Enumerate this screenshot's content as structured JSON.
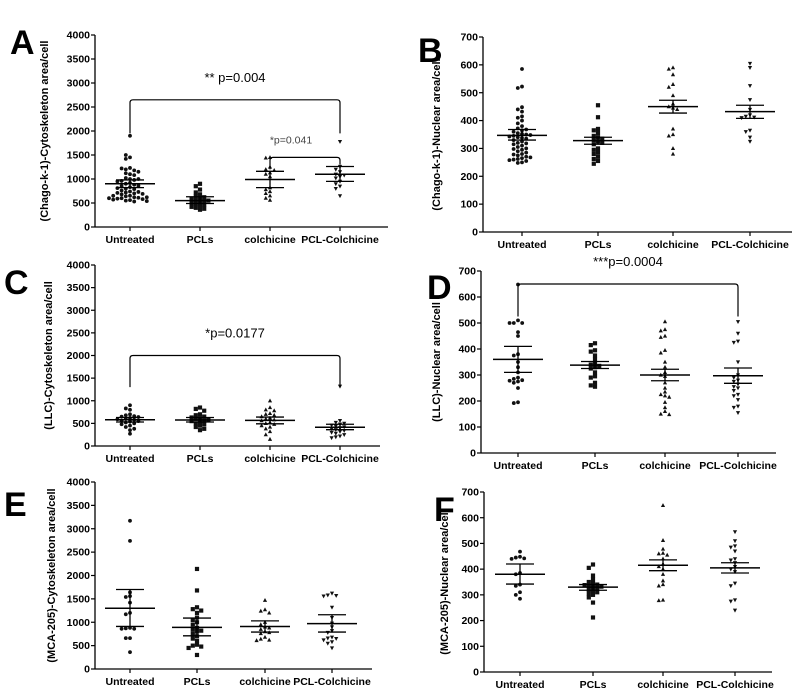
{
  "figure": {
    "categories": [
      "Untreated",
      "PCLs",
      "colchicine",
      "PCL-Colchicine"
    ],
    "markers": [
      "circle",
      "square",
      "triangle-up",
      "triangle-down"
    ]
  },
  "chart_data": [
    {
      "type": "scatter",
      "panel": "A",
      "title": "",
      "xlabel": "",
      "ylabel": "(Chago-k-1)-Cytoskeleton area/cell",
      "categories": [
        "Untreated",
        "PCLs",
        "colchicine",
        "PCL-Colchicine"
      ],
      "ylim": [
        0,
        4000
      ],
      "yticks": [
        0,
        500,
        1000,
        1500,
        2000,
        2500,
        3000,
        3500,
        4000
      ],
      "series": [
        {
          "name": "Untreated",
          "mean": 900,
          "sem_low": 820,
          "sem_high": 980,
          "values": [
            1900,
            1450,
            1420,
            1500,
            1230,
            1200,
            1180,
            1220,
            1100,
            1120,
            1080,
            1150,
            1000,
            1020,
            980,
            960,
            1000,
            950,
            920,
            900,
            880,
            850,
            860,
            830,
            800,
            790,
            810,
            760,
            740,
            720,
            700,
            730,
            710,
            690,
            680,
            650,
            640,
            620,
            600,
            610,
            590,
            580,
            560,
            570,
            550,
            530,
            540,
            600,
            620,
            650
          ]
        },
        {
          "name": "PCLs",
          "mean": 550,
          "sem_low": 490,
          "sem_high": 630,
          "values": [
            900,
            850,
            780,
            720,
            680,
            640,
            620,
            600,
            580,
            560,
            550,
            540,
            520,
            500,
            480,
            460,
            440,
            420,
            400,
            380,
            360
          ]
        },
        {
          "name": "colchicine",
          "mean": 990,
          "sem_low": 820,
          "sem_high": 1160,
          "values": [
            1450,
            1440,
            1250,
            1200,
            1180,
            1130,
            1100,
            1050,
            820,
            780,
            740,
            700,
            650,
            600,
            560
          ]
        },
        {
          "name": "PCL-Colchicine",
          "mean": 1100,
          "sem_low": 950,
          "sem_high": 1260,
          "values": [
            1780,
            1260,
            1200,
            1150,
            1100,
            1080,
            1050,
            1020,
            950,
            900,
            850,
            800,
            650
          ]
        }
      ],
      "annotations": [
        {
          "text": "** p=0.004",
          "from": "Untreated",
          "to": "PCL-Colchicine",
          "bracket_y": 2650,
          "left_end": 1950,
          "right_end": 1950,
          "style": "large"
        },
        {
          "text": "*p=0.041",
          "from": "colchicine",
          "to": "PCL-Colchicine",
          "bracket_y": 1450,
          "left_end": 1200,
          "right_end": 1300,
          "style": "small"
        }
      ]
    },
    {
      "type": "scatter",
      "panel": "B",
      "title": "",
      "xlabel": "",
      "ylabel": "(Chago-k-1)-Nuclear area/cell",
      "categories": [
        "Untreated",
        "PCLs",
        "colchicine",
        "PCL-Colchicine"
      ],
      "ylim": [
        0,
        700
      ],
      "yticks": [
        0,
        100,
        200,
        300,
        400,
        500,
        600,
        700
      ],
      "series": [
        {
          "name": "Untreated",
          "mean": 347,
          "sem_low": 330,
          "sem_high": 368,
          "values": [
            585,
            522,
            517,
            448,
            440,
            432,
            415,
            410,
            400,
            390,
            380,
            372,
            368,
            365,
            360,
            355,
            352,
            350,
            348,
            345,
            343,
            340,
            338,
            335,
            330,
            325,
            320,
            318,
            315,
            310,
            305,
            300,
            298,
            295,
            290,
            285,
            280,
            278,
            275,
            270,
            268,
            265,
            262,
            260,
            258,
            255,
            250,
            248
          ]
        },
        {
          "name": "PCLs",
          "mean": 328,
          "sem_low": 315,
          "sem_high": 340,
          "values": [
            455,
            412,
            370,
            365,
            355,
            345,
            340,
            335,
            330,
            325,
            320,
            315,
            300,
            295,
            285,
            280,
            270,
            262,
            255,
            245
          ]
        },
        {
          "name": "colchicine",
          "mean": 450,
          "sem_low": 427,
          "sem_high": 473,
          "values": [
            590,
            585,
            565,
            530,
            520,
            490,
            460,
            450,
            445,
            440,
            370,
            350,
            345,
            300,
            280
          ]
        },
        {
          "name": "PCL-Colchicine",
          "mean": 432,
          "sem_low": 408,
          "sem_high": 455,
          "values": [
            605,
            590,
            525,
            475,
            440,
            420,
            415,
            412,
            410,
            365,
            360,
            340,
            325
          ]
        }
      ],
      "annotations": []
    },
    {
      "type": "scatter",
      "panel": "C",
      "title": "",
      "xlabel": "",
      "ylabel": "(LLC)-Cytoskeleton area/cell",
      "categories": [
        "Untreated",
        "PCLs",
        "colchicine",
        "PCL-Colchicine"
      ],
      "ylim": [
        0,
        4000
      ],
      "yticks": [
        0,
        500,
        1000,
        1500,
        2000,
        2500,
        3000,
        3500,
        4000
      ],
      "series": [
        {
          "name": "Untreated",
          "mean": 580,
          "sem_low": 530,
          "sem_high": 630,
          "values": [
            900,
            830,
            800,
            700,
            680,
            660,
            650,
            640,
            620,
            600,
            590,
            580,
            560,
            550,
            540,
            520,
            500,
            480,
            450,
            420,
            380,
            350,
            270
          ]
        },
        {
          "name": "PCLs",
          "mean": 575,
          "sem_low": 530,
          "sem_high": 630,
          "values": [
            850,
            820,
            780,
            700,
            680,
            650,
            630,
            610,
            600,
            580,
            560,
            550,
            530,
            500,
            480,
            450,
            420,
            380,
            350
          ]
        },
        {
          "name": "colchicine",
          "mean": 565,
          "sem_low": 490,
          "sem_high": 640,
          "values": [
            1000,
            850,
            800,
            780,
            720,
            700,
            680,
            650,
            620,
            600,
            580,
            560,
            520,
            500,
            480,
            450,
            420,
            380,
            320,
            250,
            150
          ]
        },
        {
          "name": "PCL-Colchicine",
          "mean": 415,
          "sem_low": 360,
          "sem_high": 480,
          "values": [
            1320,
            560,
            520,
            500,
            480,
            460,
            440,
            420,
            400,
            380,
            360,
            340,
            320,
            300,
            280,
            250,
            220,
            200,
            180
          ]
        }
      ],
      "annotations": [
        {
          "text": "*p=0.0177",
          "from": "Untreated",
          "to": "PCL-Colchicine",
          "bracket_y": 2000,
          "left_end": 1300,
          "right_end": 1300,
          "style": "large"
        }
      ]
    },
    {
      "type": "scatter",
      "panel": "D",
      "title": "",
      "xlabel": "",
      "ylabel": "(LLC)-Nuclear area/cell",
      "categories": [
        "Untreated",
        "PCLs",
        "colchicine",
        "PCL-Colchicine"
      ],
      "ylim": [
        0,
        700
      ],
      "yticks": [
        0,
        100,
        200,
        300,
        400,
        500,
        600,
        700
      ],
      "series": [
        {
          "name": "Untreated",
          "mean": 360,
          "sem_low": 310,
          "sem_high": 410,
          "values": [
            648,
            510,
            500,
            500,
            500,
            465,
            450,
            380,
            375,
            350,
            330,
            310,
            290,
            285,
            280,
            278,
            275,
            270,
            250,
            195,
            192
          ]
        },
        {
          "name": "PCLs",
          "mean": 338,
          "sem_low": 325,
          "sem_high": 352,
          "values": [
            422,
            415,
            395,
            390,
            375,
            360,
            345,
            340,
            335,
            330,
            325,
            310,
            295,
            290,
            270,
            260,
            255
          ]
        },
        {
          "name": "colchicine",
          "mean": 300,
          "sem_low": 278,
          "sem_high": 322,
          "values": [
            505,
            475,
            470,
            450,
            445,
            395,
            385,
            350,
            330,
            310,
            300,
            295,
            270,
            250,
            235,
            225,
            220,
            215,
            195,
            175,
            160,
            150,
            148
          ]
        },
        {
          "name": "PCL-Colchicine",
          "mean": 297,
          "sem_low": 268,
          "sem_high": 327,
          "values": [
            505,
            460,
            430,
            425,
            350,
            300,
            290,
            280,
            275,
            265,
            255,
            250,
            240,
            225,
            220,
            205,
            180,
            175,
            155
          ]
        }
      ],
      "annotations": [
        {
          "text": "***p=0.0004",
          "from": "Untreated",
          "to": "PCL-Colchicine",
          "bracket_y": 650,
          "left_end": 525,
          "right_end": 525,
          "style": "large"
        }
      ]
    },
    {
      "type": "scatter",
      "panel": "E",
      "title": "",
      "xlabel": "",
      "ylabel": "(MCA-205)-Cytoskeleton area/cell",
      "categories": [
        "Untreated",
        "PCLs",
        "colchicine",
        "PCL-Colchicine"
      ],
      "ylim": [
        0,
        4000
      ],
      "yticks": [
        0,
        500,
        1000,
        1500,
        2000,
        2500,
        3000,
        3500,
        4000
      ],
      "series": [
        {
          "name": "Untreated",
          "mean": 1300,
          "sem_low": 910,
          "sem_high": 1700,
          "values": [
            3170,
            2740,
            1640,
            1560,
            1540,
            1420,
            1200,
            1170,
            880,
            870,
            860,
            860,
            660,
            660,
            360
          ]
        },
        {
          "name": "PCLs",
          "mean": 890,
          "sem_low": 710,
          "sem_high": 1090,
          "values": [
            2140,
            1680,
            1320,
            1280,
            1250,
            1200,
            1100,
            1050,
            1000,
            950,
            880,
            850,
            820,
            800,
            760,
            700,
            650,
            600,
            520,
            500,
            480,
            450,
            300
          ]
        },
        {
          "name": "colchicine",
          "mean": 910,
          "sem_low": 790,
          "sem_high": 1030,
          "values": [
            1470,
            1270,
            1240,
            1200,
            1000,
            950,
            900,
            880,
            850,
            800,
            780,
            760,
            680,
            640,
            620,
            610
          ]
        },
        {
          "name": "PCL-Colchicine",
          "mean": 970,
          "sem_low": 790,
          "sem_high": 1160,
          "values": [
            1620,
            1580,
            1570,
            1560,
            1320,
            1100,
            980,
            900,
            820,
            780,
            680,
            660,
            650,
            620,
            580,
            550,
            450
          ]
        }
      ],
      "annotations": []
    },
    {
      "type": "scatter",
      "panel": "F",
      "title": "",
      "xlabel": "",
      "ylabel": "(MCA-205)-Nuclear area/cell",
      "categories": [
        "Untreated",
        "PCLs",
        "colchicine",
        "PCL-Colchicine"
      ],
      "ylim": [
        0,
        700
      ],
      "yticks": [
        0,
        100,
        200,
        300,
        400,
        500,
        600,
        700
      ],
      "series": [
        {
          "name": "Untreated",
          "mean": 380,
          "sem_low": 342,
          "sem_high": 420,
          "values": [
            468,
            448,
            445,
            442,
            440,
            385,
            380,
            340,
            335,
            310,
            300,
            285
          ]
        },
        {
          "name": "PCLs",
          "mean": 330,
          "sem_low": 318,
          "sem_high": 340,
          "values": [
            418,
            405,
            375,
            360,
            350,
            345,
            340,
            338,
            335,
            332,
            330,
            325,
            320,
            315,
            310,
            305,
            300,
            290,
            270,
            212
          ]
        },
        {
          "name": "colchicine",
          "mean": 415,
          "sem_low": 394,
          "sem_high": 436,
          "values": [
            648,
            512,
            478,
            462,
            460,
            455,
            440,
            420,
            410,
            400,
            380,
            355,
            340,
            335,
            280,
            278
          ]
        },
        {
          "name": "PCL-Colchicine",
          "mean": 405,
          "sem_low": 385,
          "sem_high": 425,
          "values": [
            545,
            510,
            490,
            485,
            470,
            440,
            435,
            425,
            410,
            400,
            390,
            345,
            335,
            280,
            275,
            240
          ]
        }
      ],
      "annotations": []
    }
  ]
}
